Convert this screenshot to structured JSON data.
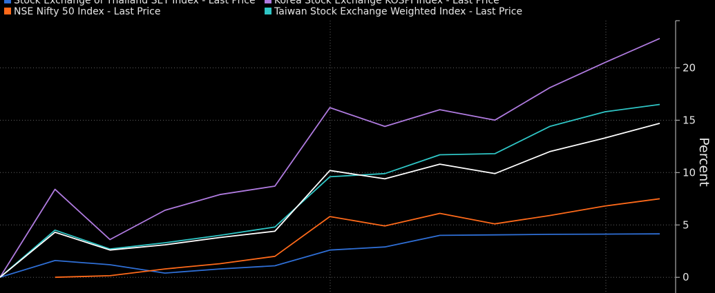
{
  "chart_data": {
    "type": "line",
    "title": "",
    "xlabel": "",
    "ylabel": "Percent",
    "ylim": [
      -1.5,
      24.5
    ],
    "yticks": [
      0,
      5,
      10,
      15,
      20
    ],
    "x": [
      0,
      1,
      2,
      3,
      4,
      5,
      6,
      7,
      8,
      9,
      10,
      11,
      12
    ],
    "grid": "dotted",
    "legend_position": "top",
    "series": [
      {
        "name": "Stock Exchange of Thailand SET Index - Last Price",
        "color": "#2f6fd6",
        "values": [
          0,
          1.6,
          1.2,
          0.4,
          0.8,
          1.1,
          2.6,
          2.9,
          4.0,
          4.05,
          4.1,
          4.12,
          4.15
        ]
      },
      {
        "name": "Korea Stock Exchange KOSPI Index - Last Price",
        "color": "#b07be0",
        "values": [
          0,
          8.4,
          3.6,
          6.4,
          7.9,
          8.7,
          16.2,
          14.4,
          16.0,
          15.0,
          18.1,
          20.5,
          22.8
        ]
      },
      {
        "name": "NSE Nifty 50 Index - Last Price",
        "color": "#ff6a1a",
        "values": [
          null,
          0,
          0.15,
          0.8,
          1.3,
          2.0,
          5.8,
          4.9,
          6.1,
          5.1,
          5.9,
          6.8,
          7.5
        ]
      },
      {
        "name": "Taiwan Stock Exchange Weighted Index - Last Price",
        "color": "#2fc6c6",
        "values": [
          0,
          4.5,
          2.7,
          3.3,
          4.0,
          4.8,
          9.6,
          9.9,
          11.7,
          11.8,
          14.4,
          15.8,
          16.5
        ]
      },
      {
        "name": "",
        "color": "#ffffff",
        "values": [
          0,
          4.3,
          2.6,
          3.1,
          3.8,
          4.4,
          10.2,
          9.4,
          10.8,
          9.9,
          12.0,
          13.3,
          14.7
        ]
      }
    ]
  }
}
